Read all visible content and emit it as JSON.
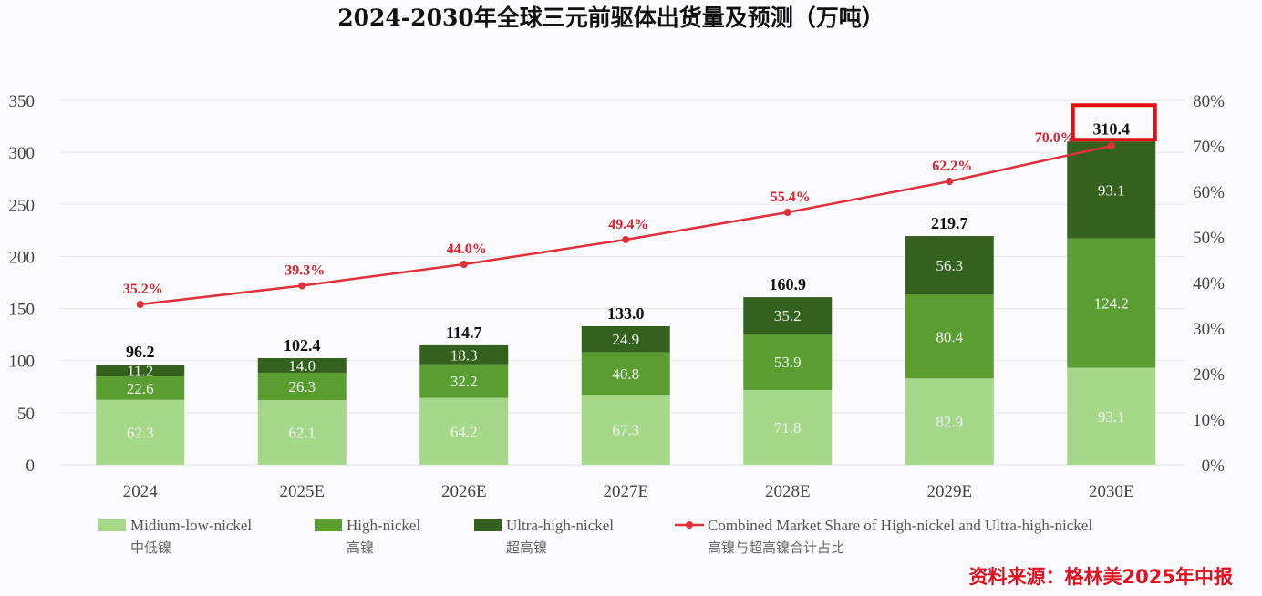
{
  "chart_data": {
    "type": "bar",
    "stacked": true,
    "title": "2024-2030年全球三元前驱体出货量及预测（万吨）",
    "categories": [
      "2024",
      "2025E",
      "2026E",
      "2027E",
      "2028E",
      "2029E",
      "2030E"
    ],
    "series": [
      {
        "name": "Midium-low-nickel",
        "name_cn": "中低镍",
        "color": "#a6d88a",
        "values": [
          62.3,
          62.1,
          64.2,
          67.3,
          71.8,
          82.9,
          93.1
        ]
      },
      {
        "name": "High-nickel",
        "name_cn": "高镍",
        "color": "#5a9e32",
        "values": [
          22.6,
          26.3,
          32.2,
          40.8,
          53.9,
          80.4,
          124.2
        ]
      },
      {
        "name": "Ultra-high-nickel",
        "name_cn": "超高镍",
        "color": "#35611f",
        "values": [
          11.2,
          14.0,
          18.3,
          24.9,
          35.2,
          56.3,
          93.1
        ]
      }
    ],
    "totals": [
      "96.2",
      "102.4",
      "114.7",
      "133.0",
      "160.9",
      "219.7",
      "310.4"
    ],
    "line_series": {
      "name": "Combined Market Share of High-nickel  and Ultra-high-nickel",
      "name_cn": "高镍与超高镍合计占比",
      "color": "#e0303a",
      "axis": "right",
      "values": [
        35.2,
        39.3,
        44.0,
        49.4,
        55.4,
        62.2,
        70.0
      ],
      "labels": [
        "35.2%",
        "39.3%",
        "44.0%",
        "49.4%",
        "55.4%",
        "62.2%",
        "70.0%"
      ]
    },
    "y_left": {
      "range": [
        0,
        350
      ],
      "ticks": [
        "0",
        "50",
        "100",
        "150",
        "200",
        "250",
        "300",
        "350"
      ]
    },
    "y_right": {
      "range": [
        0,
        80
      ],
      "ticks": [
        "0%",
        "10%",
        "20%",
        "30%",
        "40%",
        "50%",
        "60%",
        "70%",
        "80%"
      ]
    },
    "grid": true,
    "legend": "bottom",
    "highlight": {
      "category": "2030E",
      "color": "#e01010"
    },
    "source": "资料来源：格林美2025年中报"
  }
}
